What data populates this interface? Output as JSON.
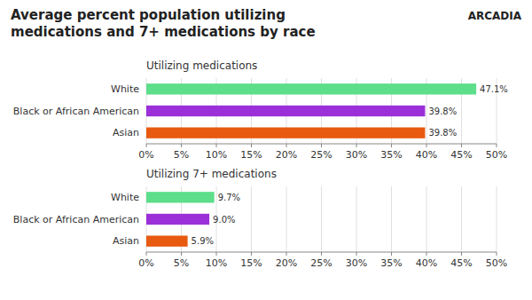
{
  "chart_data": [
    {
      "type": "bar",
      "orientation": "horizontal",
      "title": "Average percent population utilizing\nmedications and 7+ medications by race",
      "subtitle": "Utilizing medications",
      "annotations": [
        {
          "text": "ARCADIA"
        }
      ],
      "categories": [
        "White",
        "Black or African American",
        "Asian"
      ],
      "values": [
        47.1,
        39.8,
        39.8
      ],
      "value_labels": [
        "47.1%",
        "39.8%",
        "39.8%"
      ],
      "colors": [
        "#5dde8a",
        "#9b30d8",
        "#e85a10"
      ],
      "xlim": [
        0,
        50
      ],
      "xticks": [
        {
          "value": 0,
          "label": "0%"
        },
        {
          "value": 5,
          "label": "5%"
        },
        {
          "value": 10,
          "label": "10%"
        },
        {
          "value": 15,
          "label": "15%"
        },
        {
          "value": 20,
          "label": "20%"
        },
        {
          "value": 25,
          "label": "25%"
        },
        {
          "value": 30,
          "label": "30%"
        },
        {
          "value": 35,
          "label": "35%"
        },
        {
          "value": 40,
          "label": "40%"
        },
        {
          "value": 45,
          "label": "45%"
        },
        {
          "value": 50,
          "label": "50%"
        }
      ],
      "grid": true,
      "data_labels": true
    },
    {
      "type": "bar",
      "orientation": "horizontal",
      "subtitle": "Utilizing 7+ medications",
      "categories": [
        "White",
        "Black or African American",
        "Asian"
      ],
      "values": [
        9.7,
        9.0,
        5.9
      ],
      "value_labels": [
        "9.7%",
        "9.0%",
        "5.9%"
      ],
      "colors": [
        "#5dde8a",
        "#9b30d8",
        "#e85a10"
      ],
      "xlim": [
        0,
        50
      ],
      "xticks": [
        {
          "value": 0,
          "label": "0%"
        },
        {
          "value": 5,
          "label": "5%"
        },
        {
          "value": 10,
          "label": "10%"
        },
        {
          "value": 15,
          "label": "15%"
        },
        {
          "value": 20,
          "label": "20%"
        },
        {
          "value": 25,
          "label": "25%"
        },
        {
          "value": 30,
          "label": "30%"
        },
        {
          "value": 35,
          "label": "35%"
        },
        {
          "value": 40,
          "label": "40%"
        },
        {
          "value": 45,
          "label": "45%"
        },
        {
          "value": 50,
          "label": "50%"
        }
      ],
      "grid": true,
      "data_labels": true
    }
  ]
}
